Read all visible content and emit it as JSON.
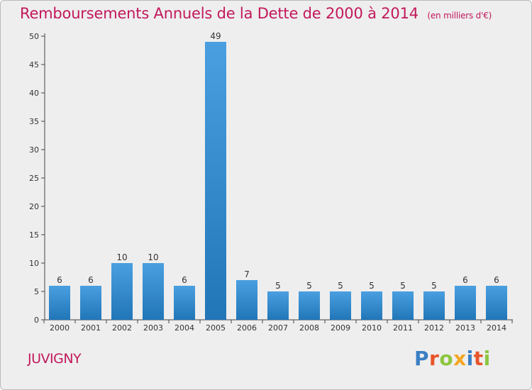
{
  "chart_data": {
    "type": "bar",
    "title": "Remboursements Annuels de la Dette de 2000 à 2014",
    "subtitle": "(en milliers d'€)",
    "categories": [
      "2000",
      "2001",
      "2002",
      "2003",
      "2004",
      "2005",
      "2006",
      "2007",
      "2008",
      "2009",
      "2010",
      "2011",
      "2012",
      "2013",
      "2014"
    ],
    "values": [
      6,
      6,
      10,
      10,
      6,
      49,
      7,
      5,
      5,
      5,
      5,
      5,
      5,
      6,
      6
    ],
    "ylim": [
      0,
      50
    ],
    "yticks": [
      "0",
      "5",
      "10",
      "15",
      "20",
      "25",
      "30",
      "35",
      "40",
      "45",
      "50"
    ],
    "xlabel": "",
    "ylabel": "",
    "grid": false,
    "bar_color": "#4a9fe0",
    "bar_color_dark": "#2176b8"
  },
  "footer": {
    "town": "JUVIGNY",
    "brand_letters": [
      "P",
      "r",
      "o",
      "x",
      "i",
      "t",
      "i"
    ],
    "brand_colors": [
      "#3a7fc4",
      "#e8542a",
      "#8cc63f",
      "#f5a623",
      "#3a7fc4",
      "#e8542a",
      "#8cc63f"
    ]
  }
}
